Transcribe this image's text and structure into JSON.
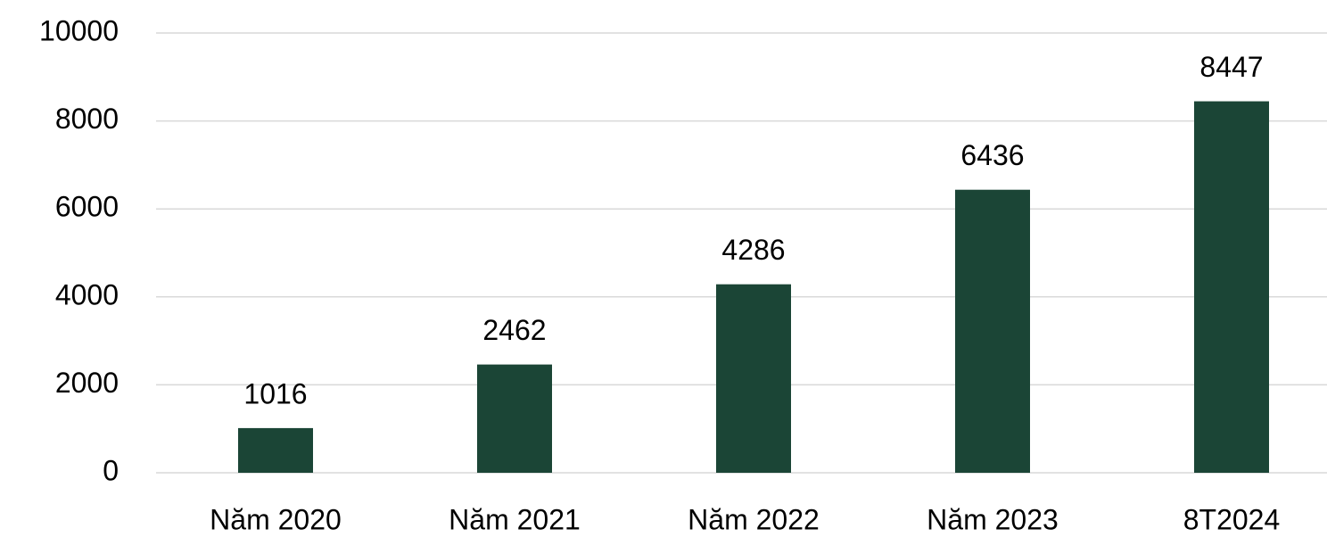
{
  "chart_data": {
    "type": "bar",
    "categories": [
      "Năm 2020",
      "Năm 2021",
      "Năm 2022",
      "Năm 2023",
      "8T2024"
    ],
    "values": [
      1016,
      2462,
      4286,
      6436,
      8447
    ],
    "color": "#1b4536",
    "ylim": [
      0,
      10000
    ],
    "yticks": [
      0,
      2000,
      4000,
      6000,
      8000,
      10000
    ],
    "grid": true
  }
}
